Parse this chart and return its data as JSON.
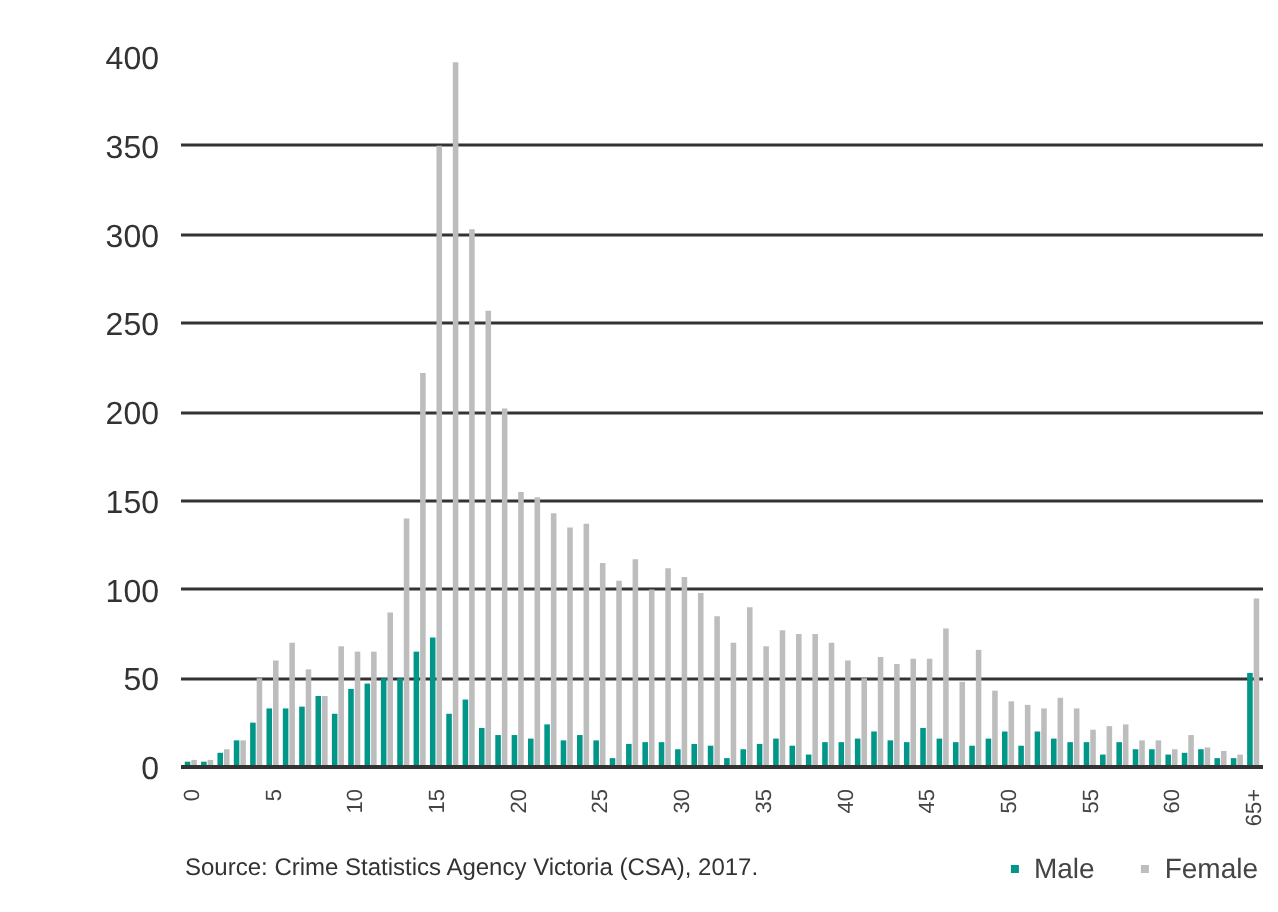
{
  "chart_data": {
    "type": "bar",
    "categories": [
      "0",
      null,
      null,
      null,
      null,
      "5",
      null,
      null,
      null,
      null,
      "10",
      null,
      null,
      null,
      null,
      "15",
      null,
      null,
      null,
      null,
      "20",
      null,
      null,
      null,
      null,
      "25",
      null,
      null,
      null,
      null,
      "30",
      null,
      null,
      null,
      null,
      "35",
      null,
      null,
      null,
      null,
      "40",
      null,
      null,
      null,
      null,
      "45",
      null,
      null,
      null,
      null,
      "50",
      null,
      null,
      null,
      null,
      "55",
      null,
      null,
      null,
      null,
      "60",
      null,
      null,
      null,
      null,
      "65+"
    ],
    "series": [
      {
        "name": "Male",
        "color": "#009688",
        "values": [
          3,
          3,
          8,
          15,
          25,
          33,
          33,
          34,
          40,
          30,
          44,
          47,
          50,
          50,
          65,
          73,
          30,
          38,
          22,
          18,
          18,
          16,
          24,
          15,
          18,
          15,
          5,
          13,
          14,
          14,
          10,
          13,
          12,
          5,
          10,
          13,
          16,
          12,
          7,
          14,
          14,
          16,
          20,
          15,
          14,
          22,
          16,
          14,
          12,
          16,
          20,
          12,
          20,
          16,
          14,
          14,
          7,
          14,
          10,
          10,
          7,
          8,
          10,
          5,
          5,
          53
        ]
      },
      {
        "name": "Female",
        "color": "#bdbdbd",
        "values": [
          4,
          4,
          10,
          15,
          50,
          60,
          70,
          55,
          40,
          68,
          65,
          65,
          87,
          140,
          222,
          350,
          397,
          303,
          257,
          202,
          155,
          152,
          143,
          135,
          137,
          115,
          105,
          117,
          100,
          112,
          107,
          98,
          85,
          70,
          90,
          68,
          77,
          75,
          75,
          70,
          60,
          50,
          62,
          58,
          61,
          61,
          78,
          48,
          66,
          43,
          37,
          35,
          33,
          39,
          33,
          21,
          23,
          24,
          15,
          15,
          10,
          18,
          11,
          9,
          7,
          95
        ]
      }
    ],
    "ylim": [
      0,
      400
    ],
    "yticks": [
      0,
      50,
      100,
      150,
      200,
      250,
      300,
      350,
      400
    ],
    "grid": "y",
    "legend": "bottom right",
    "annotations": [
      "Source: Crime Statistics Agency Victoria (CSA), 2017."
    ]
  }
}
